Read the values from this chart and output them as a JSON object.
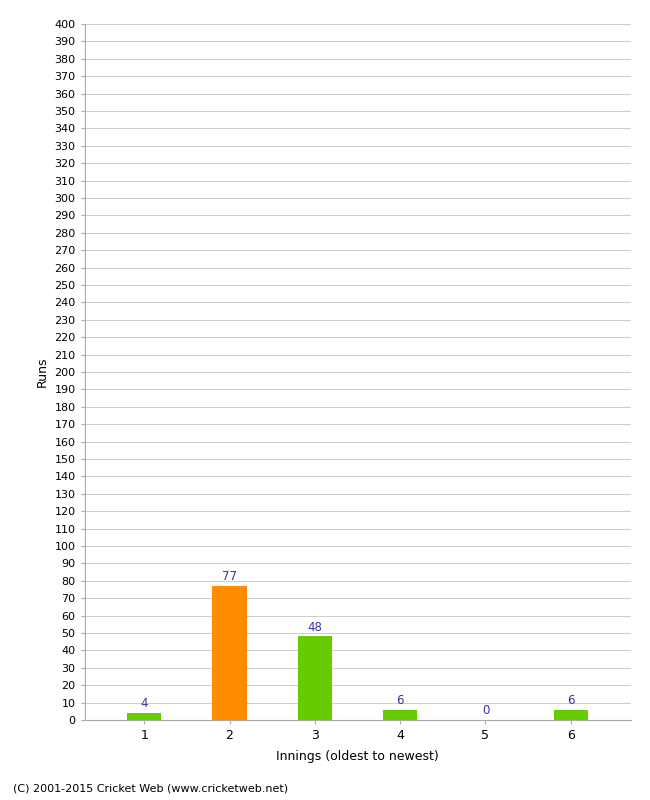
{
  "categories": [
    "1",
    "2",
    "3",
    "4",
    "5",
    "6"
  ],
  "values": [
    4,
    77,
    48,
    6,
    0,
    6
  ],
  "bar_colors": [
    "#66cc00",
    "#ff8c00",
    "#66cc00",
    "#66cc00",
    "#66cc00",
    "#66cc00"
  ],
  "ylabel": "Runs",
  "xlabel": "Innings (oldest to newest)",
  "ylim": [
    0,
    400
  ],
  "label_color": "#3333aa",
  "footer": "(C) 2001-2015 Cricket Web (www.cricketweb.net)",
  "background_color": "#ffffff",
  "grid_color": "#cccccc",
  "bar_width": 0.4
}
